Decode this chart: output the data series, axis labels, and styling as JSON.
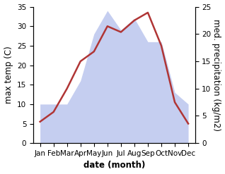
{
  "months": [
    "Jan",
    "Feb",
    "Mar",
    "Apr",
    "May",
    "Jun",
    "Jul",
    "Aug",
    "Sep",
    "Oct",
    "Nov",
    "Dec"
  ],
  "month_positions": [
    1,
    2,
    3,
    4,
    5,
    6,
    7,
    8,
    9,
    10,
    11,
    12
  ],
  "temperature": [
    5.5,
    8.0,
    14.0,
    21.0,
    23.5,
    30.0,
    28.5,
    31.5,
    33.5,
    25.0,
    10.5,
    5.0
  ],
  "precipitation": [
    10,
    10,
    10,
    16,
    28,
    34,
    29,
    32,
    26,
    26,
    13,
    10
  ],
  "temp_color": "#b03535",
  "precip_fill_color": "#c5cef0",
  "temp_ylim": [
    0,
    35
  ],
  "precip_ylim": [
    0,
    35
  ],
  "temp_yticks": [
    0,
    5,
    10,
    15,
    20,
    25,
    30,
    35
  ],
  "precip_yticks": [
    0,
    5,
    10,
    15,
    20,
    25
  ],
  "precip_ytick_scale": 1.4,
  "xlabel": "date (month)",
  "ylabel_left": "max temp (C)",
  "ylabel_right": "med. precipitation (kg/m2)",
  "axis_fontsize": 8.5,
  "tick_fontsize": 7.5,
  "line_width": 1.8,
  "background_color": "#ffffff"
}
